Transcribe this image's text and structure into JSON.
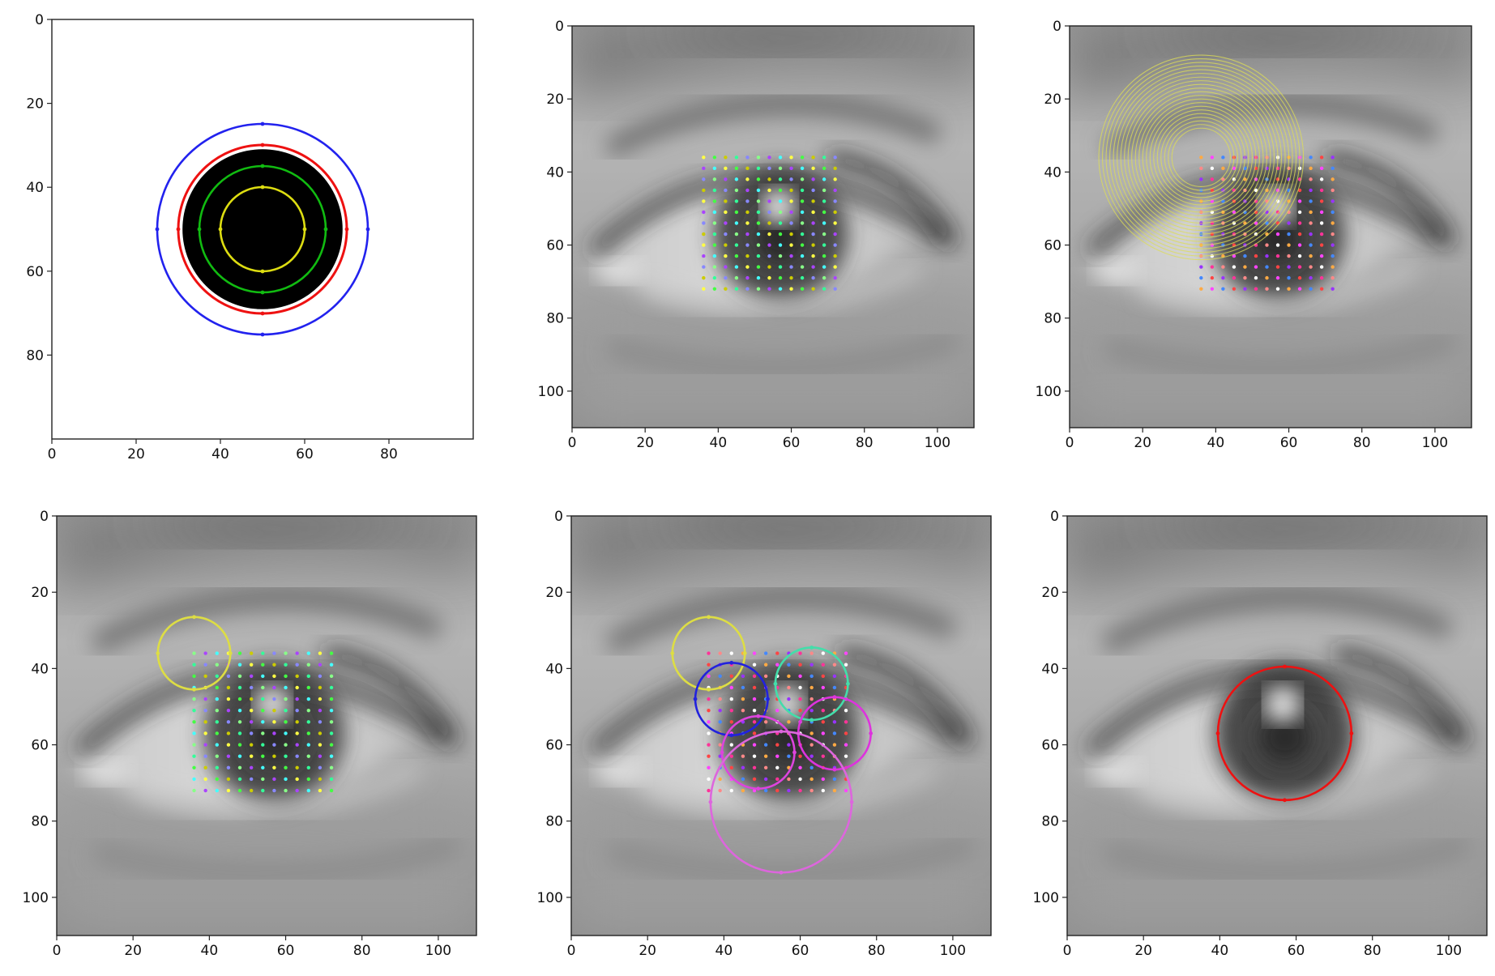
{
  "figure": {
    "layout": "2x3 grid of image panels",
    "background": "#ffffff"
  },
  "chart_data": [
    {
      "id": "panel-1",
      "type": "image-plot",
      "title": "",
      "xlabel": "",
      "ylabel": "",
      "xlim": [
        0,
        100
      ],
      "ylim": [
        100,
        0
      ],
      "xticks": [
        "0",
        "20",
        "40",
        "60",
        "80"
      ],
      "yticks": [
        "0",
        "20",
        "40",
        "60",
        "80"
      ],
      "image": "synthetic-disc",
      "circles": [
        {
          "cx": 50,
          "cy": 50,
          "r": 25,
          "color": "#2222ee",
          "style": "outline"
        },
        {
          "cx": 50,
          "cy": 50,
          "r": 20,
          "color": "#ee1111",
          "style": "filled-ring"
        },
        {
          "cx": 50,
          "cy": 50,
          "r": 15,
          "color": "#11bb11",
          "style": "outline"
        },
        {
          "cx": 50,
          "cy": 50,
          "r": 10,
          "color": "#dddd11",
          "style": "outline"
        }
      ],
      "disc": {
        "cx": 50,
        "cy": 50,
        "r": 19,
        "color": "#000000"
      }
    },
    {
      "id": "panel-2",
      "type": "image-plot",
      "title": "",
      "xlim": [
        0,
        110
      ],
      "ylim": [
        110,
        0
      ],
      "xticks": [
        "0",
        "20",
        "40",
        "60",
        "80",
        "100"
      ],
      "yticks": [
        "0",
        "20",
        "40",
        "60",
        "80",
        "100"
      ],
      "image": "grayscale-eye",
      "grid_points": {
        "x_start": 36,
        "x_end": 72,
        "y_start": 36,
        "y_end": 72,
        "step": 3
      },
      "circles": []
    },
    {
      "id": "panel-3",
      "type": "image-plot",
      "title": "",
      "xlim": [
        0,
        110
      ],
      "ylim": [
        110,
        0
      ],
      "xticks": [
        "0",
        "20",
        "40",
        "60",
        "80",
        "100"
      ],
      "yticks": [
        "0",
        "20",
        "40",
        "60",
        "80",
        "100"
      ],
      "image": "grayscale-eye",
      "grid_points": {
        "x_start": 36,
        "x_end": 72,
        "y_start": 36,
        "y_end": 72,
        "step": 3
      },
      "circles": [],
      "concentric": {
        "cx": 36,
        "cy": 36,
        "r_min": 8,
        "r_max": 28,
        "step": 1,
        "color": "#dddd55"
      }
    },
    {
      "id": "panel-4",
      "type": "image-plot",
      "title": "",
      "xlim": [
        0,
        110
      ],
      "ylim": [
        110,
        0
      ],
      "xticks": [
        "0",
        "20",
        "40",
        "60",
        "80",
        "100"
      ],
      "yticks": [
        "0",
        "20",
        "40",
        "60",
        "80",
        "100"
      ],
      "image": "grayscale-eye",
      "grid_points": {
        "x_start": 36,
        "x_end": 72,
        "y_start": 36,
        "y_end": 72,
        "step": 3
      },
      "circles": [
        {
          "cx": 36,
          "cy": 36,
          "r": 9.5,
          "color": "#dddd44",
          "style": "outline"
        }
      ]
    },
    {
      "id": "panel-5",
      "type": "image-plot",
      "title": "",
      "xlim": [
        0,
        110
      ],
      "ylim": [
        110,
        0
      ],
      "xticks": [
        "0",
        "20",
        "40",
        "60",
        "80",
        "100"
      ],
      "yticks": [
        "0",
        "20",
        "40",
        "60",
        "80",
        "100"
      ],
      "image": "grayscale-eye",
      "grid_points": {
        "x_start": 36,
        "x_end": 72,
        "y_start": 36,
        "y_end": 72,
        "step": 3
      },
      "circles": [
        {
          "cx": 36,
          "cy": 36,
          "r": 9.5,
          "color": "#dddd44",
          "style": "outline"
        },
        {
          "cx": 42,
          "cy": 48,
          "r": 9.5,
          "color": "#2222dd",
          "style": "outline"
        },
        {
          "cx": 63,
          "cy": 44,
          "r": 9.5,
          "color": "#44ddaa",
          "style": "outline"
        },
        {
          "cx": 49,
          "cy": 62,
          "r": 9.5,
          "color": "#dd44dd",
          "style": "outline"
        },
        {
          "cx": 69,
          "cy": 57,
          "r": 9.5,
          "color": "#dd33dd",
          "style": "outline"
        },
        {
          "cx": 55,
          "cy": 75,
          "r": 18.5,
          "color": "#dd66dd",
          "style": "outline"
        }
      ]
    },
    {
      "id": "panel-6",
      "type": "image-plot",
      "title": "",
      "xlim": [
        0,
        110
      ],
      "ylim": [
        110,
        0
      ],
      "xticks": [
        "0",
        "20",
        "40",
        "60",
        "80",
        "100"
      ],
      "yticks": [
        "0",
        "20",
        "40",
        "60",
        "80",
        "100"
      ],
      "image": "grayscale-eye",
      "circles": [
        {
          "cx": 57,
          "cy": 57,
          "r": 17.5,
          "color": "#ee1111",
          "style": "outline"
        }
      ]
    }
  ]
}
